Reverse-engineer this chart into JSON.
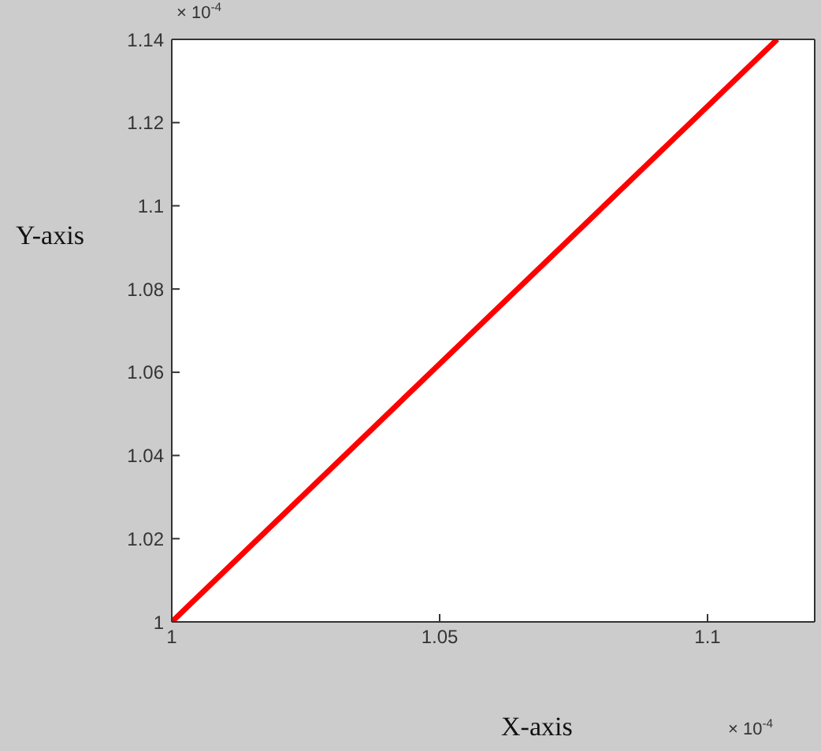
{
  "chart_data": {
    "type": "line",
    "xlabel": "X-axis",
    "ylabel": "Y-axis",
    "annotations": [
      "× 10$^{-4}$",
      "× 10$^{-4}$"
    ],
    "x": [
      1,
      1.05,
      1.113
    ],
    "series": [
      {
        "color": "#ff0000",
        "values": [
          1,
          1.062,
          1.14
        ]
      }
    ],
    "xlim": [
      1,
      1.12
    ],
    "xticks": [
      1,
      1.05,
      1.1
    ],
    "ylim": [
      1,
      1.14
    ],
    "yticks": [
      1,
      1.02,
      1.04,
      1.06,
      1.08,
      1.1,
      1.12,
      1.14
    ],
    "marker": "none",
    "line_style": "solid",
    "legend": false,
    "grid": false
  }
}
